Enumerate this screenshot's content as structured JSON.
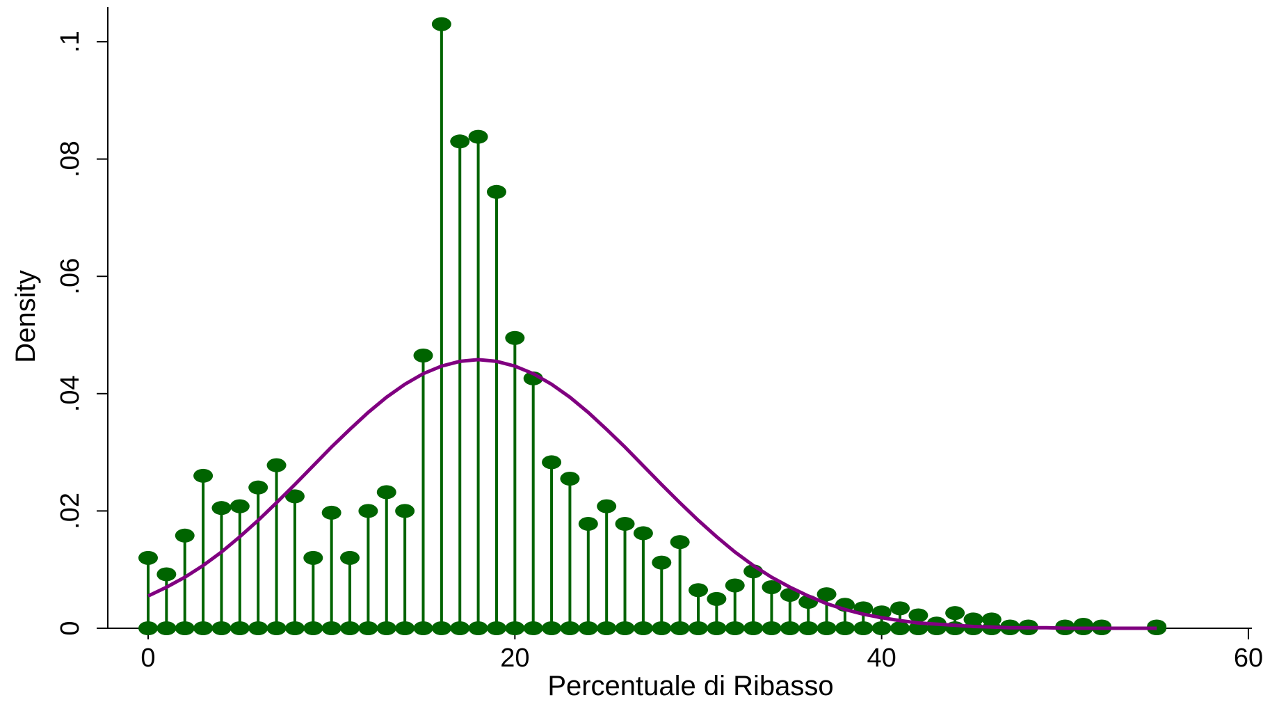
{
  "chart_data": {
    "type": "scatter",
    "title": "",
    "xlabel": "Percentuale di Ribasso",
    "ylabel": "Density",
    "xlim": [
      -1,
      60
    ],
    "ylim": [
      0,
      0.105
    ],
    "x_ticks": [
      0,
      20,
      40,
      60
    ],
    "x_tick_labels": [
      "0",
      "20",
      "40",
      "60"
    ],
    "y_ticks": [
      0,
      0.02,
      0.04,
      0.06,
      0.08,
      0.1
    ],
    "y_tick_labels": [
      "0",
      ".02",
      ".04",
      ".06",
      ".08",
      ".1"
    ],
    "grid": false,
    "colors": {
      "stems": "#006400",
      "curve": "#800080"
    },
    "series": [
      {
        "kind": "stem",
        "x": [
          0,
          1,
          2,
          3,
          4,
          5,
          6,
          7,
          8,
          9,
          10,
          11,
          12,
          13,
          14,
          15,
          16,
          17,
          18,
          19,
          20,
          21,
          22,
          23,
          24,
          25,
          26,
          27,
          28,
          29,
          30,
          31,
          32,
          33,
          34,
          35,
          36,
          37,
          38,
          39,
          40,
          41,
          42,
          43,
          44,
          45,
          46,
          47,
          48,
          50,
          51,
          52,
          55
        ],
        "values": [
          0.012,
          0.0092,
          0.0158,
          0.026,
          0.0205,
          0.0208,
          0.024,
          0.0278,
          0.0225,
          0.012,
          0.0197,
          0.012,
          0.02,
          0.0232,
          0.02,
          0.0465,
          0.103,
          0.083,
          0.0838,
          0.0744,
          0.0495,
          0.0426,
          0.0283,
          0.0255,
          0.0178,
          0.0208,
          0.0178,
          0.0162,
          0.0112,
          0.0147,
          0.0065,
          0.005,
          0.0073,
          0.0097,
          0.007,
          0.0057,
          0.0045,
          0.0058,
          0.004,
          0.0034,
          0.0027,
          0.0034,
          0.0022,
          0.0008,
          0.0026,
          0.0015,
          0.0015,
          0.0003,
          0.0003,
          0.0003,
          0.0006,
          0.0003,
          0.0003
        ]
      },
      {
        "kind": "line",
        "x": [
          0,
          1,
          2,
          3,
          4,
          5,
          6,
          7,
          8,
          9,
          10,
          11,
          12,
          13,
          14,
          15,
          16,
          17,
          18,
          19,
          20,
          21,
          22,
          23,
          24,
          25,
          26,
          27,
          28,
          29,
          30,
          31,
          32,
          33,
          34,
          35,
          36,
          37,
          38,
          39,
          40,
          41,
          42,
          43,
          44,
          45,
          46,
          47,
          48,
          49,
          50,
          51,
          52,
          53,
          54,
          55
        ],
        "values": [
          0.0055,
          0.007,
          0.0087,
          0.0107,
          0.013,
          0.0156,
          0.0184,
          0.0214,
          0.0245,
          0.0277,
          0.0309,
          0.0339,
          0.0368,
          0.0394,
          0.0416,
          0.0434,
          0.0447,
          0.0455,
          0.0458,
          0.0455,
          0.0447,
          0.0434,
          0.0416,
          0.0394,
          0.0368,
          0.0339,
          0.0309,
          0.0277,
          0.0245,
          0.0214,
          0.0184,
          0.0156,
          0.013,
          0.0107,
          0.0087,
          0.007,
          0.0055,
          0.0042,
          0.0032,
          0.0024,
          0.0018,
          0.0013,
          0.0009,
          0.0007,
          0.0005,
          0.0003,
          0.0002,
          0.0001,
          0.0001,
          0.0001,
          0.0,
          0.0,
          0.0,
          0.0,
          0.0,
          0.0
        ]
      }
    ]
  }
}
